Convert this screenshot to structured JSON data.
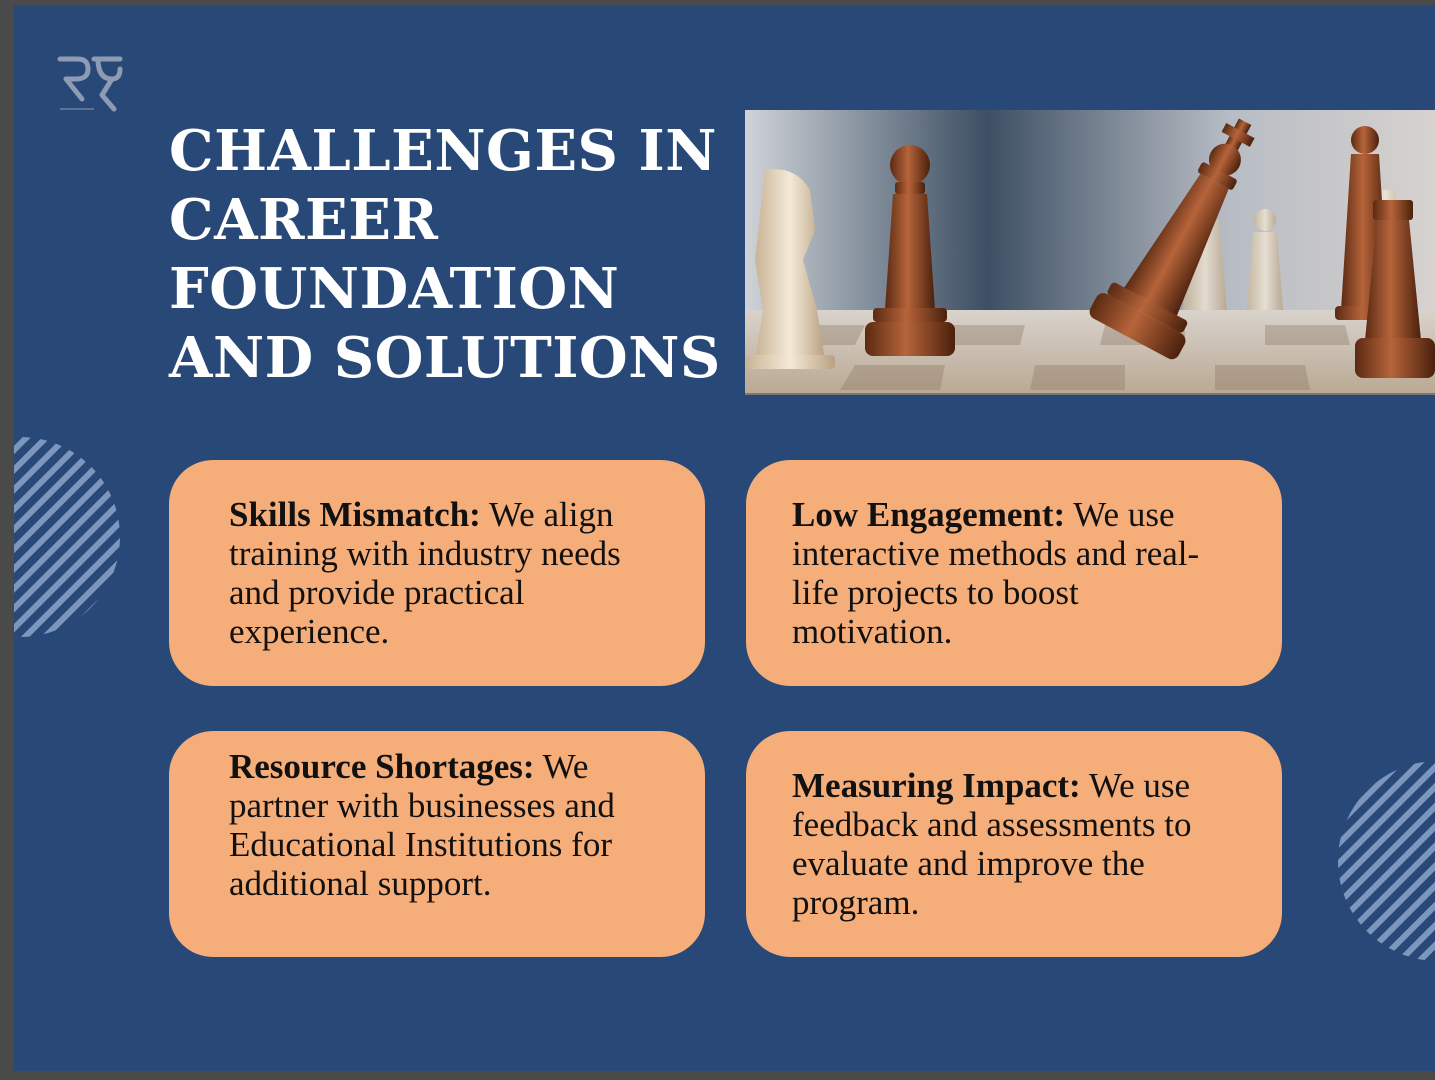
{
  "slide": {
    "title_lines": [
      "CHALLENGES IN",
      "CAREER",
      "FOUNDATION",
      "AND SOLUTIONS"
    ],
    "logo_text": "RY",
    "colors": {
      "background": "#284878",
      "card": "#f5ad79",
      "title": "#ffffff",
      "body_text": "#111111"
    }
  },
  "image": {
    "subject": "chess-pieces-photo"
  },
  "cards": [
    {
      "lead": "Skills Mismatch:",
      "body": " We align training with industry needs and provide practical experience."
    },
    {
      "lead": "Low Engagement:",
      "body": " We use interactive methods and real-life projects to boost motivation."
    },
    {
      "lead": "Resource Shortages:",
      "body": " We partner with businesses and Educational Institutions for additional support."
    },
    {
      "lead": "Measuring Impact:",
      "body": " We use feedback and assessments to evaluate and improve the program."
    }
  ]
}
